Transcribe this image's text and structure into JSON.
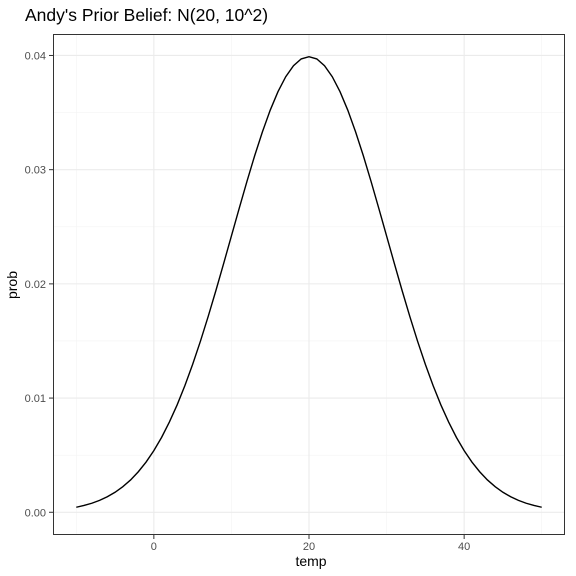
{
  "chart_data": {
    "type": "line",
    "title": "Andy's Prior Belief: N(20, 10^2)",
    "xlabel": "temp",
    "ylabel": "prob",
    "distribution": {
      "family": "normal",
      "mean": 20,
      "sd": 10
    },
    "x_range": [
      -10,
      50
    ],
    "xlim": [
      -13,
      53
    ],
    "ylim": [
      -0.00199,
      0.04188
    ],
    "x_ticks": [
      0,
      20,
      40
    ],
    "x_tick_labels": [
      "0",
      "20",
      "40"
    ],
    "y_ticks": [
      0,
      0.01,
      0.02,
      0.03,
      0.04
    ],
    "y_tick_labels": [
      "0.00",
      "0.01",
      "0.02",
      "0.03",
      "0.04"
    ],
    "grid": true,
    "legend": "none",
    "colors": {
      "line": "#000000",
      "grid_major": "#ebebeb",
      "grid_minor": "#f3f3f3",
      "panel_border": "#333333",
      "tick_label": "#4d4d4d"
    },
    "series": [
      {
        "x": [
          -10,
          -9,
          -8,
          -7,
          -6,
          -5,
          -4,
          -3,
          -2,
          -1,
          0,
          1,
          2,
          3,
          4,
          5,
          6,
          7,
          8,
          9,
          10,
          11,
          12,
          13,
          14,
          15,
          16,
          17,
          18,
          19,
          20,
          21,
          22,
          23,
          24,
          25,
          26,
          27,
          28,
          29,
          30,
          31,
          32,
          33,
          34,
          35,
          36,
          37,
          38,
          39,
          40,
          41,
          42,
          43,
          44,
          45,
          46,
          47,
          48,
          49,
          50
        ],
        "y": [
          0.00044,
          0.0006,
          0.00079,
          0.00104,
          0.00136,
          0.00175,
          0.00224,
          0.00283,
          0.00355,
          0.0044,
          0.0054,
          0.00656,
          0.0079,
          0.0094,
          0.01109,
          0.01295,
          0.01497,
          0.01714,
          0.01942,
          0.02179,
          0.0242,
          0.02661,
          0.02897,
          0.03123,
          0.03332,
          0.03521,
          0.03683,
          0.03814,
          0.0391,
          0.0397,
          0.03989,
          0.0397,
          0.0391,
          0.03814,
          0.03683,
          0.03521,
          0.03332,
          0.03123,
          0.02897,
          0.02661,
          0.0242,
          0.02179,
          0.01942,
          0.01714,
          0.01497,
          0.01295,
          0.01109,
          0.0094,
          0.0079,
          0.00656,
          0.0054,
          0.0044,
          0.00355,
          0.00283,
          0.00224,
          0.00175,
          0.00136,
          0.00104,
          0.00079,
          0.0006,
          0.00044
        ]
      }
    ]
  }
}
